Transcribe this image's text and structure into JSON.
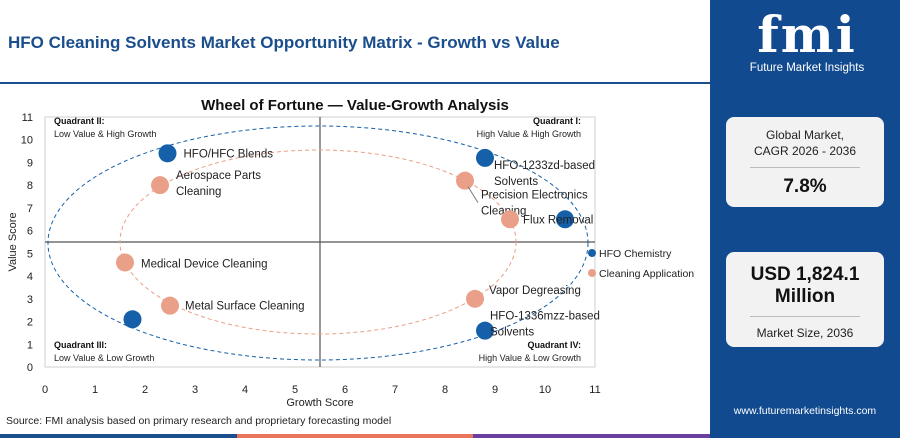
{
  "header": {
    "title": "HFO Cleaning Solvents Market Opportunity Matrix - Growth vs Value"
  },
  "chart_data": {
    "type": "scatter",
    "title": "Wheel of Fortune — Value-Growth Analysis",
    "xlabel": "Growth Score",
    "ylabel": "Value Score",
    "xlim": [
      0,
      11
    ],
    "ylim": [
      0,
      11
    ],
    "x_ticks": [
      "0",
      "1",
      "2",
      "3",
      "4",
      "5",
      "6",
      "7",
      "8",
      "9",
      "10",
      "11"
    ],
    "y_ticks": [
      "0",
      "1",
      "2",
      "3",
      "4",
      "5",
      "6",
      "7",
      "8",
      "9",
      "10",
      "11"
    ],
    "quadrant_divider": {
      "x": 5.5,
      "y": 5.5
    },
    "legend_position": "right",
    "series": [
      {
        "name": "HFO Chemistry",
        "color": "#1560a8",
        "points": [
          {
            "label": "HFO/HFC Blends",
            "x": 2.45,
            "y": 9.4
          },
          {
            "label": "HFO-1233zd-based Solvents",
            "x": 8.8,
            "y": 9.2
          },
          {
            "label": "Flux Removal",
            "x": 10.4,
            "y": 6.5
          },
          {
            "label": "HFO-1336mzz-based Solvents",
            "x": 8.8,
            "y": 1.6
          },
          {
            "label": "",
            "x": 1.75,
            "y": 2.1
          }
        ]
      },
      {
        "name": "Cleaning Application",
        "color": "#ea9f88",
        "points": [
          {
            "label": "Aerospace Parts Cleaning",
            "x": 2.3,
            "y": 8.0
          },
          {
            "label": "Precision Electronics Cleaning",
            "x": 8.4,
            "y": 8.2
          },
          {
            "label": "",
            "x": 9.3,
            "y": 6.5
          },
          {
            "label": "Medical Device Cleaning",
            "x": 1.6,
            "y": 4.6
          },
          {
            "label": "Metal Surface Cleaning",
            "x": 2.5,
            "y": 2.7
          },
          {
            "label": "Vapor Degreasing",
            "x": 8.6,
            "y": 3.0
          }
        ]
      }
    ],
    "quadrants": [
      {
        "name": "Quadrant II:",
        "desc": "Low Value & High Growth"
      },
      {
        "name": "Quadrant I:",
        "desc": "High Value & High Growth"
      },
      {
        "name": "Quadrant III:",
        "desc": "Low Value & Low Growth"
      },
      {
        "name": "Quadrant IV:",
        "desc": "High Value & Low Growth"
      }
    ]
  },
  "footer": {
    "source": "Source: FMI analysis based on primary research and proprietary forecasting model",
    "bar_colors": [
      "#1a4e8c",
      "#e8755a",
      "#6b3fa0"
    ]
  },
  "sidebar": {
    "logo_mark": "fmi",
    "logo_text": "Future Market Insights",
    "cagr_label_line1": "Global Market,",
    "cagr_label_line2": "CAGR 2026 - 2036",
    "cagr_value": "7.8%",
    "size_value_line1": "USD 1,824.1",
    "size_value_line2": "Million",
    "size_label": "Market Size, 2036",
    "website": "www.futuremarketinsights.com",
    "background_color": "#114a8f"
  }
}
